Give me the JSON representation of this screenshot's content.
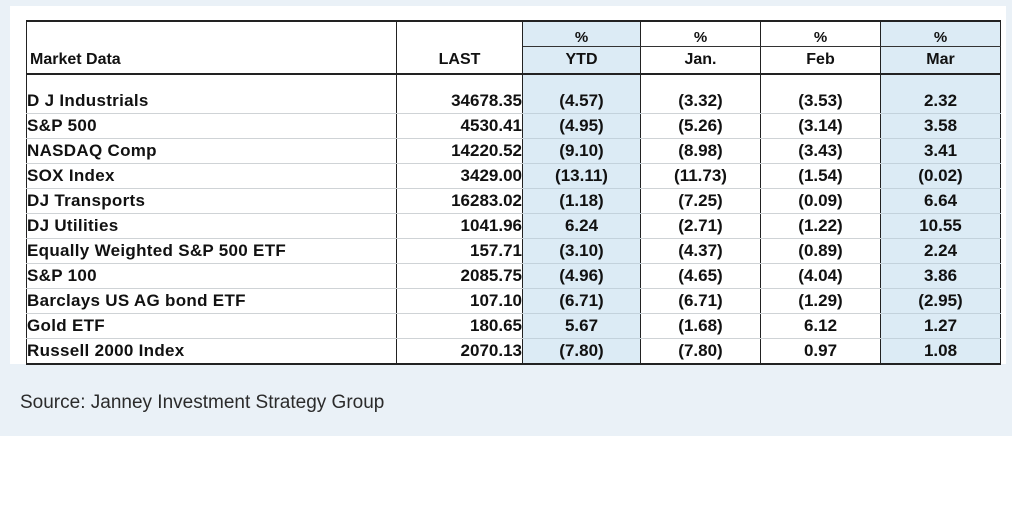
{
  "table": {
    "header_row1": [
      "",
      "",
      "%",
      "%",
      "%",
      "%"
    ],
    "header_row2": [
      "Market Data",
      "LAST",
      "YTD",
      "Jan.",
      "Feb",
      "Mar"
    ],
    "rows": [
      {
        "name": "D J Industrials",
        "last": "34678.35",
        "ytd": "(4.57)",
        "jan": "(3.32)",
        "feb": "(3.53)",
        "mar": "2.32"
      },
      {
        "name": "S&P 500",
        "last": "4530.41",
        "ytd": "(4.95)",
        "jan": "(5.26)",
        "feb": "(3.14)",
        "mar": "3.58"
      },
      {
        "name": "NASDAQ Comp",
        "last": "14220.52",
        "ytd": "(9.10)",
        "jan": "(8.98)",
        "feb": "(3.43)",
        "mar": "3.41"
      },
      {
        "name": "SOX Index",
        "last": "3429.00",
        "ytd": "(13.11)",
        "jan": "(11.73)",
        "feb": "(1.54)",
        "mar": "(0.02)"
      },
      {
        "name": "DJ Transports",
        "last": "16283.02",
        "ytd": "(1.18)",
        "jan": "(7.25)",
        "feb": "(0.09)",
        "mar": "6.64"
      },
      {
        "name": "DJ Utilities",
        "last": "1041.96",
        "ytd": "6.24",
        "jan": "(2.71)",
        "feb": "(1.22)",
        "mar": "10.55"
      },
      {
        "name": "Equally Weighted S&P 500 ETF",
        "last": "157.71",
        "ytd": "(3.10)",
        "jan": "(4.37)",
        "feb": "(0.89)",
        "mar": "2.24"
      },
      {
        "name": "S&P 100",
        "last": "2085.75",
        "ytd": "(4.96)",
        "jan": "(4.65)",
        "feb": "(4.04)",
        "mar": "3.86"
      },
      {
        "name": "Barclays US AG bond ETF",
        "last": "107.10",
        "ytd": "(6.71)",
        "jan": "(6.71)",
        "feb": "(1.29)",
        "mar": "(2.95)"
      },
      {
        "name": "Gold ETF",
        "last": "180.65",
        "ytd": "5.67",
        "jan": "(1.68)",
        "feb": "6.12",
        "mar": "1.27"
      },
      {
        "name": "Russell 2000 Index",
        "last": "2070.13",
        "ytd": "(7.80)",
        "jan": "(7.80)",
        "feb": "0.97",
        "mar": "1.08"
      }
    ],
    "colors": {
      "negative": "#e01010",
      "positive": "#111111",
      "shaded_column": "#dcebf5"
    }
  },
  "source": "Source: Janney Investment Strategy Group"
}
